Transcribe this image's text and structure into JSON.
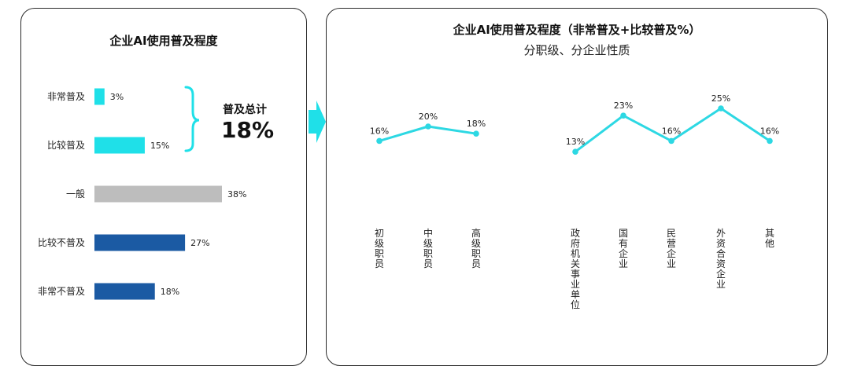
{
  "chart_data": [
    {
      "type": "bar",
      "orientation": "horizontal",
      "title": "企业AI使用普及程度",
      "categories": [
        "非常普及",
        "比较普及",
        "一般",
        "比较不普及",
        "非常不普及"
      ],
      "values": [
        3,
        15,
        38,
        27,
        18
      ],
      "value_labels": [
        "3%",
        "15%",
        "38%",
        "27%",
        "18%"
      ],
      "colors": [
        "#1fe0e8",
        "#1fe0e8",
        "#bdbdbd",
        "#1b5aa3",
        "#1b5aa3"
      ],
      "xlim": [
        0,
        38
      ],
      "annotation": {
        "label": "普及总计",
        "value": "18%"
      }
    },
    {
      "type": "line",
      "title": "企业AI使用普及程度（非常普及+比较普及%）",
      "subtitle": "分职级、分企业性质",
      "color": "#2dd8e3",
      "ylim": [
        0,
        30
      ],
      "groups": [
        {
          "categories": [
            "初级职员",
            "中级职员",
            "高级职员"
          ],
          "values": [
            16,
            20,
            18
          ],
          "value_labels": [
            "16%",
            "20%",
            "18%"
          ]
        },
        {
          "categories": [
            "政府机关事业单位",
            "国有企业",
            "民营企业",
            "外资合资企业",
            "其他"
          ],
          "values": [
            13,
            23,
            16,
            25,
            16
          ],
          "value_labels": [
            "13%",
            "23%",
            "16%",
            "25%",
            "16%"
          ]
        }
      ]
    }
  ]
}
